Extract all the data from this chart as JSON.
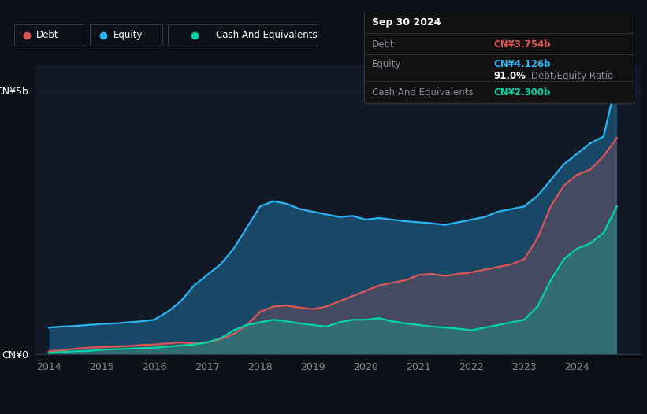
{
  "bg_color": "#0d1117",
  "plot_bg_color": "#111927",
  "grid_color": "#1a2535",
  "debt_color": "#e05555",
  "equity_color": "#29b6f6",
  "cash_color": "#00d4aa",
  "ylabel_5b": "CN¥5b",
  "ylabel_0": "CN¥0",
  "tooltip": {
    "date": "Sep 30 2024",
    "debt_label": "Debt",
    "debt_value": "CN¥3.754b",
    "equity_label": "Equity",
    "equity_value": "CN¥4.126b",
    "ratio_pct": "91.0%",
    "ratio_label": " Debt/Equity Ratio",
    "cash_label": "Cash And Equivalents",
    "cash_value": "CN¥2.300b"
  },
  "legend": [
    "Debt",
    "Equity",
    "Cash And Equivalents"
  ],
  "years": [
    2014.0,
    2014.25,
    2014.5,
    2014.75,
    2015.0,
    2015.25,
    2015.5,
    2015.75,
    2016.0,
    2016.25,
    2016.5,
    2016.75,
    2017.0,
    2017.25,
    2017.5,
    2017.75,
    2018.0,
    2018.25,
    2018.5,
    2018.75,
    2019.0,
    2019.25,
    2019.5,
    2019.75,
    2020.0,
    2020.25,
    2020.5,
    2020.75,
    2021.0,
    2021.25,
    2021.5,
    2021.75,
    2022.0,
    2022.25,
    2022.5,
    2022.75,
    2023.0,
    2023.25,
    2023.5,
    2023.75,
    2024.0,
    2024.25,
    2024.5,
    2024.75
  ],
  "debt": [
    0.05,
    0.07,
    0.1,
    0.12,
    0.13,
    0.14,
    0.15,
    0.17,
    0.18,
    0.2,
    0.22,
    0.2,
    0.22,
    0.28,
    0.38,
    0.55,
    0.8,
    0.9,
    0.92,
    0.88,
    0.85,
    0.9,
    1.0,
    1.1,
    1.2,
    1.3,
    1.35,
    1.4,
    1.5,
    1.52,
    1.48,
    1.52,
    1.55,
    1.6,
    1.65,
    1.7,
    1.8,
    2.2,
    2.8,
    3.2,
    3.4,
    3.5,
    3.754,
    4.1
  ],
  "equity": [
    0.5,
    0.52,
    0.53,
    0.55,
    0.57,
    0.58,
    0.6,
    0.62,
    0.65,
    0.8,
    1.0,
    1.3,
    1.5,
    1.7,
    2.0,
    2.4,
    2.8,
    2.9,
    2.85,
    2.75,
    2.7,
    2.65,
    2.6,
    2.62,
    2.55,
    2.58,
    2.55,
    2.52,
    2.5,
    2.48,
    2.45,
    2.5,
    2.55,
    2.6,
    2.7,
    2.75,
    2.8,
    3.0,
    3.3,
    3.6,
    3.8,
    4.0,
    4.126,
    5.2
  ],
  "cash": [
    0.02,
    0.04,
    0.05,
    0.06,
    0.08,
    0.09,
    0.1,
    0.11,
    0.12,
    0.14,
    0.16,
    0.18,
    0.22,
    0.3,
    0.45,
    0.55,
    0.6,
    0.65,
    0.62,
    0.58,
    0.55,
    0.52,
    0.6,
    0.65,
    0.65,
    0.68,
    0.62,
    0.58,
    0.55,
    0.52,
    0.5,
    0.48,
    0.45,
    0.5,
    0.55,
    0.6,
    0.65,
    0.9,
    1.4,
    1.8,
    2.0,
    2.1,
    2.3,
    2.8
  ],
  "ylim": [
    0,
    5.5
  ],
  "xlim": [
    2013.75,
    2025.2
  ],
  "xticks": [
    2014,
    2015,
    2016,
    2017,
    2018,
    2019,
    2020,
    2021,
    2022,
    2023,
    2024
  ]
}
